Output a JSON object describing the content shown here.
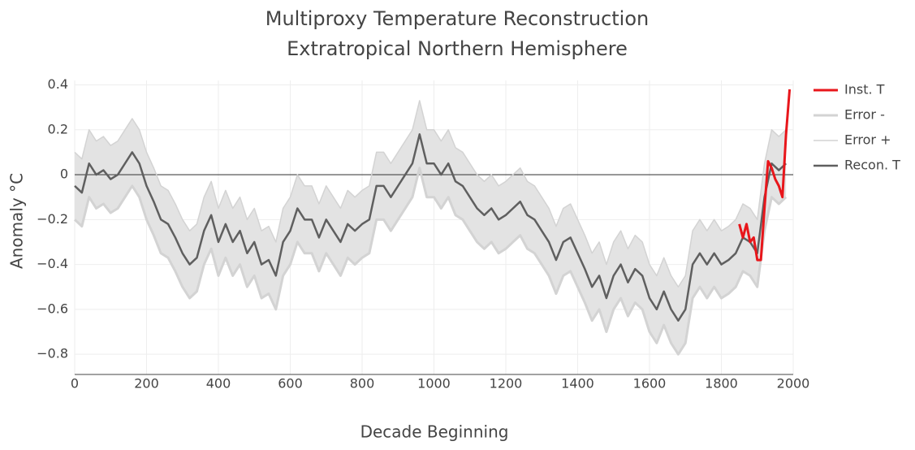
{
  "chart_data": {
    "type": "line",
    "title": [
      "Multiproxy Temperature Reconstruction",
      "Extratropical Northern Hemisphere"
    ],
    "xlabel": "Decade Beginning",
    "ylabel": "Anomaly °C",
    "xlim": [
      0,
      2000
    ],
    "xticks": [
      0,
      200,
      400,
      600,
      800,
      1000,
      1200,
      1400,
      1600,
      1800,
      2000
    ],
    "ylim": [
      -0.89,
      0.42
    ],
    "yticks": [
      {
        "value": -0.8,
        "label": "−0.8"
      },
      {
        "value": -0.6,
        "label": "−0.6"
      },
      {
        "value": -0.4,
        "label": "−0.4"
      },
      {
        "value": -0.2,
        "label": "−0.2"
      },
      0,
      0.2,
      0.4
    ],
    "grid": true,
    "zeroline": true,
    "legend": "right",
    "band_color": "#e3e3e3",
    "series": [
      {
        "name": "Inst. T",
        "color": "#e8161b",
        "width": 3,
        "x": [
          1850,
          1860,
          1870,
          1880,
          1890,
          1900,
          1910,
          1920,
          1930,
          1940,
          1950,
          1960,
          1970,
          1980,
          1990
        ],
        "values": [
          -0.22,
          -0.28,
          -0.22,
          -0.3,
          -0.28,
          -0.38,
          -0.38,
          -0.15,
          0.06,
          0.03,
          -0.02,
          -0.05,
          -0.1,
          0.18,
          0.38
        ]
      },
      {
        "name": "Error -",
        "color": "#d3d3d3",
        "width": 3,
        "x": [
          0,
          20,
          40,
          60,
          80,
          100,
          120,
          140,
          160,
          180,
          200,
          220,
          240,
          260,
          280,
          300,
          320,
          340,
          360,
          380,
          400,
          420,
          440,
          460,
          480,
          500,
          520,
          540,
          560,
          580,
          600,
          620,
          640,
          660,
          680,
          700,
          720,
          740,
          760,
          780,
          800,
          820,
          840,
          860,
          880,
          900,
          920,
          940,
          960,
          980,
          1000,
          1020,
          1040,
          1060,
          1080,
          1100,
          1120,
          1140,
          1160,
          1180,
          1200,
          1220,
          1240,
          1260,
          1280,
          1300,
          1320,
          1340,
          1360,
          1380,
          1400,
          1420,
          1440,
          1460,
          1480,
          1500,
          1520,
          1540,
          1560,
          1580,
          1600,
          1620,
          1640,
          1660,
          1680,
          1700,
          1720,
          1740,
          1760,
          1780,
          1800,
          1820,
          1840,
          1860,
          1880,
          1900,
          1920,
          1940,
          1960,
          1980
        ],
        "values": [
          -0.2,
          -0.23,
          -0.1,
          -0.15,
          -0.13,
          -0.17,
          -0.15,
          -0.1,
          -0.05,
          -0.1,
          -0.2,
          -0.27,
          -0.35,
          -0.37,
          -0.43,
          -0.5,
          -0.55,
          -0.52,
          -0.4,
          -0.33,
          -0.45,
          -0.37,
          -0.45,
          -0.4,
          -0.5,
          -0.45,
          -0.55,
          -0.53,
          -0.6,
          -0.45,
          -0.4,
          -0.3,
          -0.35,
          -0.35,
          -0.43,
          -0.35,
          -0.4,
          -0.45,
          -0.37,
          -0.4,
          -0.37,
          -0.35,
          -0.2,
          -0.2,
          -0.25,
          -0.2,
          -0.15,
          -0.1,
          0.03,
          -0.1,
          -0.1,
          -0.15,
          -0.1,
          -0.18,
          -0.2,
          -0.25,
          -0.3,
          -0.33,
          -0.3,
          -0.35,
          -0.33,
          -0.3,
          -0.27,
          -0.33,
          -0.35,
          -0.4,
          -0.45,
          -0.53,
          -0.45,
          -0.43,
          -0.5,
          -0.57,
          -0.65,
          -0.6,
          -0.7,
          -0.6,
          -0.55,
          -0.63,
          -0.57,
          -0.6,
          -0.7,
          -0.75,
          -0.67,
          -0.75,
          -0.8,
          -0.75,
          -0.55,
          -0.5,
          -0.55,
          -0.5,
          -0.55,
          -0.53,
          -0.5,
          -0.43,
          -0.45,
          -0.5,
          -0.25,
          -0.1,
          -0.13,
          -0.1
        ]
      },
      {
        "name": "Error +",
        "color": "#d3d3d3",
        "width": 1.5,
        "x": [
          0,
          20,
          40,
          60,
          80,
          100,
          120,
          140,
          160,
          180,
          200,
          220,
          240,
          260,
          280,
          300,
          320,
          340,
          360,
          380,
          400,
          420,
          440,
          460,
          480,
          500,
          520,
          540,
          560,
          580,
          600,
          620,
          640,
          660,
          680,
          700,
          720,
          740,
          760,
          780,
          800,
          820,
          840,
          860,
          880,
          900,
          920,
          940,
          960,
          980,
          1000,
          1020,
          1040,
          1060,
          1080,
          1100,
          1120,
          1140,
          1160,
          1180,
          1200,
          1220,
          1240,
          1260,
          1280,
          1300,
          1320,
          1340,
          1360,
          1380,
          1400,
          1420,
          1440,
          1460,
          1480,
          1500,
          1520,
          1540,
          1560,
          1580,
          1600,
          1620,
          1640,
          1660,
          1680,
          1700,
          1720,
          1740,
          1760,
          1780,
          1800,
          1820,
          1840,
          1860,
          1880,
          1900,
          1920,
          1940,
          1960,
          1980
        ],
        "values": [
          0.1,
          0.07,
          0.2,
          0.15,
          0.17,
          0.13,
          0.15,
          0.2,
          0.25,
          0.2,
          0.1,
          0.03,
          -0.05,
          -0.07,
          -0.13,
          -0.2,
          -0.25,
          -0.22,
          -0.1,
          -0.03,
          -0.15,
          -0.07,
          -0.15,
          -0.1,
          -0.2,
          -0.15,
          -0.25,
          -0.23,
          -0.3,
          -0.15,
          -0.1,
          0.0,
          -0.05,
          -0.05,
          -0.13,
          -0.05,
          -0.1,
          -0.15,
          -0.07,
          -0.1,
          -0.07,
          -0.05,
          0.1,
          0.1,
          0.05,
          0.1,
          0.15,
          0.2,
          0.33,
          0.2,
          0.2,
          0.15,
          0.2,
          0.12,
          0.1,
          0.05,
          0.0,
          -0.03,
          0.0,
          -0.05,
          -0.03,
          0.0,
          0.03,
          -0.03,
          -0.05,
          -0.1,
          -0.15,
          -0.23,
          -0.15,
          -0.13,
          -0.2,
          -0.27,
          -0.35,
          -0.3,
          -0.4,
          -0.3,
          -0.25,
          -0.33,
          -0.27,
          -0.3,
          -0.4,
          -0.45,
          -0.37,
          -0.45,
          -0.5,
          -0.45,
          -0.25,
          -0.2,
          -0.25,
          -0.2,
          -0.25,
          -0.23,
          -0.2,
          -0.13,
          -0.15,
          -0.2,
          0.05,
          0.2,
          0.17,
          0.2
        ]
      },
      {
        "name": "Recon. T",
        "color": "#5f5f5f",
        "width": 2.5,
        "x": [
          0,
          20,
          40,
          60,
          80,
          100,
          120,
          140,
          160,
          180,
          200,
          220,
          240,
          260,
          280,
          300,
          320,
          340,
          360,
          380,
          400,
          420,
          440,
          460,
          480,
          500,
          520,
          540,
          560,
          580,
          600,
          620,
          640,
          660,
          680,
          700,
          720,
          740,
          760,
          780,
          800,
          820,
          840,
          860,
          880,
          900,
          920,
          940,
          960,
          980,
          1000,
          1020,
          1040,
          1060,
          1080,
          1100,
          1120,
          1140,
          1160,
          1180,
          1200,
          1220,
          1240,
          1260,
          1280,
          1300,
          1320,
          1340,
          1360,
          1380,
          1400,
          1420,
          1440,
          1460,
          1480,
          1500,
          1520,
          1540,
          1560,
          1580,
          1600,
          1620,
          1640,
          1660,
          1680,
          1700,
          1720,
          1740,
          1760,
          1780,
          1800,
          1820,
          1840,
          1860,
          1880,
          1900,
          1920,
          1940,
          1960,
          1980
        ],
        "values": [
          -0.05,
          -0.08,
          0.05,
          0.0,
          0.02,
          -0.02,
          0.0,
          0.05,
          0.1,
          0.05,
          -0.05,
          -0.12,
          -0.2,
          -0.22,
          -0.28,
          -0.35,
          -0.4,
          -0.37,
          -0.25,
          -0.18,
          -0.3,
          -0.22,
          -0.3,
          -0.25,
          -0.35,
          -0.3,
          -0.4,
          -0.38,
          -0.45,
          -0.3,
          -0.25,
          -0.15,
          -0.2,
          -0.2,
          -0.28,
          -0.2,
          -0.25,
          -0.3,
          -0.22,
          -0.25,
          -0.22,
          -0.2,
          -0.05,
          -0.05,
          -0.1,
          -0.05,
          0.0,
          0.05,
          0.18,
          0.05,
          0.05,
          0.0,
          0.05,
          -0.03,
          -0.05,
          -0.1,
          -0.15,
          -0.18,
          -0.15,
          -0.2,
          -0.18,
          -0.15,
          -0.12,
          -0.18,
          -0.2,
          -0.25,
          -0.3,
          -0.38,
          -0.3,
          -0.28,
          -0.35,
          -0.42,
          -0.5,
          -0.45,
          -0.55,
          -0.45,
          -0.4,
          -0.48,
          -0.42,
          -0.45,
          -0.55,
          -0.6,
          -0.52,
          -0.6,
          -0.65,
          -0.6,
          -0.4,
          -0.35,
          -0.4,
          -0.35,
          -0.4,
          -0.38,
          -0.35,
          -0.28,
          -0.3,
          -0.35,
          -0.1,
          0.05,
          0.02,
          0.05
        ]
      }
    ]
  }
}
